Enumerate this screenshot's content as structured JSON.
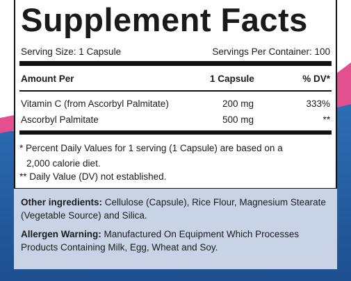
{
  "title": "Supplement Facts",
  "serving_size": "Serving Size: 1 Capsule",
  "servings_per_container": "Servings Per Container: 100",
  "table": {
    "header": [
      "Amount Per",
      "1 Capsule",
      "% DV*"
    ],
    "rows": [
      [
        "Vitamin C (from Ascorbyl Palmitate)",
        "200 mg",
        "333%"
      ],
      [
        "Ascorbyl Palmitate",
        "500 mg",
        "**"
      ]
    ]
  },
  "footnotes": [
    "* Percent Daily Values for 1 serving (1 Capsule) are based on a",
    "2,000 calorie diet.",
    "** Daily Value (DV) not established."
  ],
  "other_ingredients": {
    "label": "Other ingredients:",
    "text": "Cellulose (Capsule), Rice Flour, Magnesium Stearate (Vegetable Source) and Silica."
  },
  "allergen_warning": {
    "label": "Allergen Warning:",
    "text": "Manufactured On Equipment Which Processes Products Containing Milk, Egg, Wheat and Soy."
  }
}
